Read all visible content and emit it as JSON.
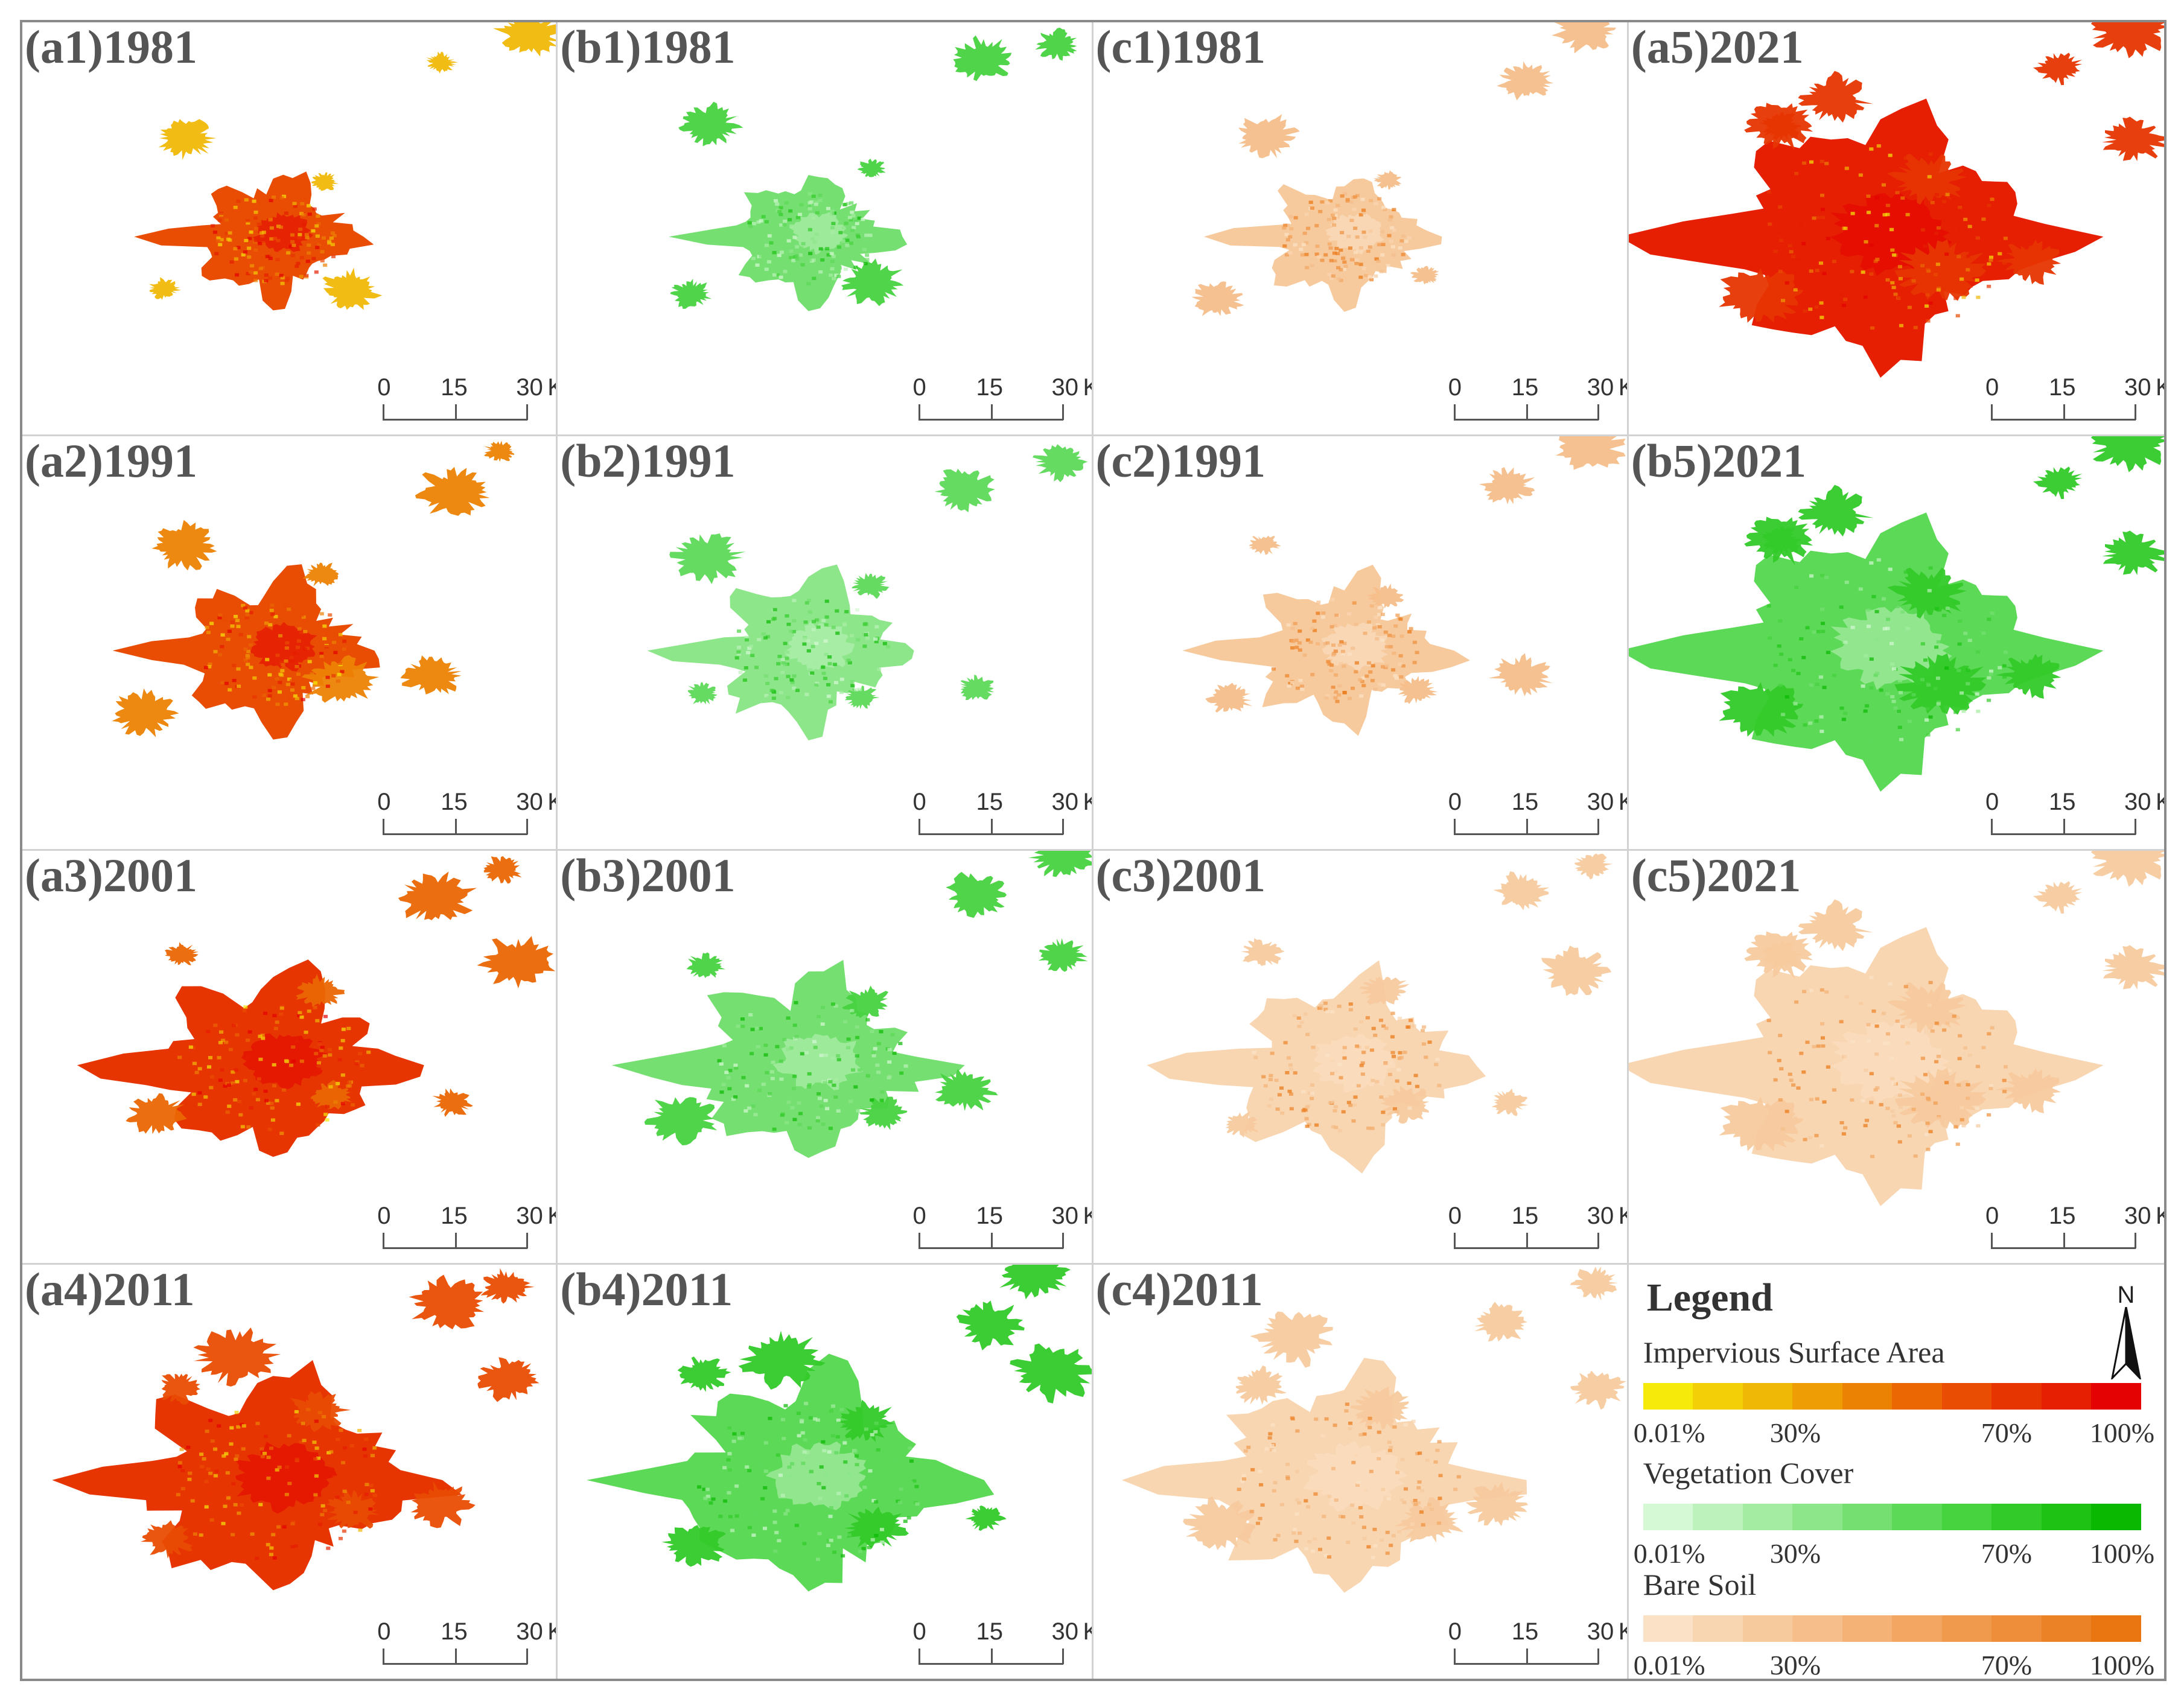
{
  "figure": {
    "rows": [
      [
        {
          "label": "(a1)1981",
          "variable": "impervious",
          "stage": 0
        },
        {
          "label": "(b1)1981",
          "variable": "vegetation",
          "stage": 0
        },
        {
          "label": "(c1)1981",
          "variable": "bare_soil",
          "stage": 0
        },
        {
          "label": "(a5)2021",
          "variable": "impervious",
          "stage": 4
        }
      ],
      [
        {
          "label": "(a2)1991",
          "variable": "impervious",
          "stage": 1
        },
        {
          "label": "(b2)1991",
          "variable": "vegetation",
          "stage": 1
        },
        {
          "label": "(c2)1991",
          "variable": "bare_soil",
          "stage": 1
        },
        {
          "label": "(b5)2021",
          "variable": "vegetation",
          "stage": 4
        }
      ],
      [
        {
          "label": "(a3)2001",
          "variable": "impervious",
          "stage": 2
        },
        {
          "label": "(b3)2001",
          "variable": "vegetation",
          "stage": 2
        },
        {
          "label": "(c3)2001",
          "variable": "bare_soil",
          "stage": 2
        },
        {
          "label": "(c5)2021",
          "variable": "bare_soil",
          "stage": 4
        }
      ],
      [
        {
          "label": "(a4)2011",
          "variable": "impervious",
          "stage": 3
        },
        {
          "label": "(b4)2011",
          "variable": "vegetation",
          "stage": 3
        },
        {
          "label": "(c4)2011",
          "variable": "bare_soil",
          "stage": 3
        }
      ]
    ]
  },
  "scalebar": {
    "ticks": [
      "0",
      "15",
      "30"
    ],
    "unit": "Km"
  },
  "legend": {
    "title": "Legend",
    "north": "N",
    "tick_labels": [
      "0.01%",
      "30%",
      "70%",
      "100%"
    ],
    "layers": [
      {
        "key": "impervious",
        "name": "Impervious Surface Area",
        "colors": [
          "#f5ea0a",
          "#f2cf06",
          "#f0b806",
          "#ee9d05",
          "#ec8204",
          "#ea6704",
          "#e94c03",
          "#e73502",
          "#e61e02",
          "#e40202"
        ]
      },
      {
        "key": "vegetation",
        "name": "Vegetation Cover",
        "colors": [
          "#d5f8d5",
          "#bdf2bc",
          "#a5eca3",
          "#8de68a",
          "#75e071",
          "#5dd958",
          "#47d23f",
          "#32ca29",
          "#1dc214",
          "#0ab802"
        ]
      },
      {
        "key": "bare_soil",
        "name": "Bare Soil",
        "colors": [
          "#fbe2c6",
          "#f9d6b2",
          "#f7ca9e",
          "#f5be8a",
          "#f4b276",
          "#f2a662",
          "#f09a4e",
          "#ee8e3a",
          "#ec8226",
          "#ea7612"
        ]
      }
    ]
  }
}
